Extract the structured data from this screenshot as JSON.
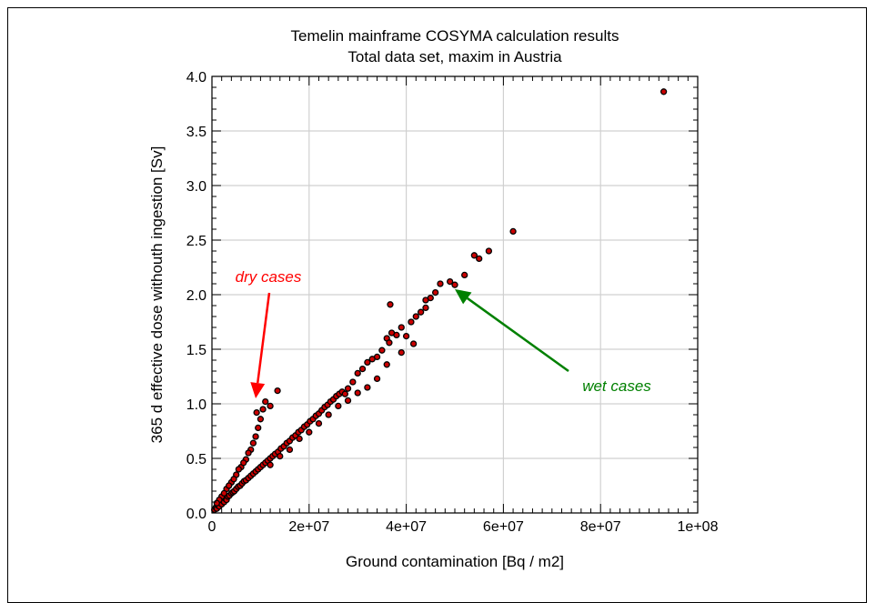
{
  "chart_data": {
    "type": "scatter",
    "title": "Temelin mainframe COSYMA calculation results",
    "subtitle": "Total data set, maxim in Austria",
    "xlabel": "Ground contamination [Bq / m2]",
    "ylabel": "365 d effective dose withouth ingestion [Sv]",
    "xlim": [
      0,
      100000000
    ],
    "ylim": [
      0,
      4.0
    ],
    "x_ticks": [
      0,
      20000000,
      40000000,
      60000000,
      80000000,
      100000000
    ],
    "x_tick_labels": [
      "0",
      "2e+07",
      "4e+07",
      "6e+07",
      "8e+07",
      "1e+08"
    ],
    "y_ticks": [
      0,
      0.5,
      1.0,
      1.5,
      2.0,
      2.5,
      3.0,
      3.5,
      4.0
    ],
    "y_tick_labels": [
      "0.0",
      "0.5",
      "1.0",
      "1.5",
      "2.0",
      "2.5",
      "3.0",
      "3.5",
      "4.0"
    ],
    "grid": true,
    "marker_color": "#cc0000",
    "marker_edge_color": "#000000",
    "series": [
      {
        "points": [
          [
            500000,
            0.03
          ],
          [
            800000,
            0.05
          ],
          [
            1000000,
            0.04
          ],
          [
            1200000,
            0.07
          ],
          [
            1500000,
            0.06
          ],
          [
            1800000,
            0.09
          ],
          [
            2000000,
            0.08
          ],
          [
            2300000,
            0.11
          ],
          [
            2500000,
            0.1
          ],
          [
            2800000,
            0.13
          ],
          [
            3000000,
            0.12
          ],
          [
            3300000,
            0.15
          ],
          [
            3600000,
            0.16
          ],
          [
            4000000,
            0.18
          ],
          [
            4300000,
            0.19
          ],
          [
            4600000,
            0.2
          ],
          [
            5000000,
            0.22
          ],
          [
            5400000,
            0.24
          ],
          [
            5800000,
            0.25
          ],
          [
            6200000,
            0.27
          ],
          [
            6600000,
            0.29
          ],
          [
            7000000,
            0.3
          ],
          [
            7500000,
            0.32
          ],
          [
            8000000,
            0.34
          ],
          [
            8500000,
            0.36
          ],
          [
            9000000,
            0.38
          ],
          [
            9500000,
            0.4
          ],
          [
            10000000,
            0.42
          ],
          [
            10500000,
            0.44
          ],
          [
            11000000,
            0.46
          ],
          [
            11500000,
            0.48
          ],
          [
            12000000,
            0.5
          ],
          [
            12500000,
            0.52
          ],
          [
            13000000,
            0.54
          ],
          [
            13600000,
            0.56
          ],
          [
            14200000,
            0.59
          ],
          [
            14800000,
            0.61
          ],
          [
            15400000,
            0.64
          ],
          [
            16000000,
            0.66
          ],
          [
            16600000,
            0.69
          ],
          [
            17200000,
            0.71
          ],
          [
            17800000,
            0.74
          ],
          [
            18400000,
            0.76
          ],
          [
            19000000,
            0.79
          ],
          [
            19600000,
            0.81
          ],
          [
            20200000,
            0.84
          ],
          [
            20800000,
            0.86
          ],
          [
            21400000,
            0.89
          ],
          [
            22000000,
            0.91
          ],
          [
            22600000,
            0.94
          ],
          [
            23200000,
            0.97
          ],
          [
            23800000,
            0.99
          ],
          [
            24400000,
            1.02
          ],
          [
            25000000,
            1.04
          ],
          [
            25600000,
            1.07
          ],
          [
            26200000,
            1.09
          ],
          [
            26800000,
            1.11
          ],
          [
            27400000,
            1.09
          ],
          [
            28000000,
            1.14
          ],
          [
            29000000,
            1.2
          ],
          [
            30000000,
            1.28
          ],
          [
            31000000,
            1.32
          ],
          [
            32000000,
            1.38
          ],
          [
            33000000,
            1.41
          ],
          [
            34000000,
            1.43
          ],
          [
            35000000,
            1.49
          ],
          [
            36000000,
            1.6
          ],
          [
            36500000,
            1.56
          ],
          [
            37000000,
            1.65
          ],
          [
            38000000,
            1.63
          ],
          [
            39000000,
            1.7
          ],
          [
            41000000,
            1.75
          ],
          [
            42000000,
            1.8
          ],
          [
            43000000,
            1.84
          ],
          [
            44000000,
            1.88
          ],
          [
            45000000,
            1.97
          ],
          [
            46000000,
            2.02
          ],
          [
            47000000,
            2.1
          ],
          [
            49000000,
            2.12
          ],
          [
            50000000,
            2.09
          ],
          [
            52000000,
            2.18
          ],
          [
            54000000,
            2.36
          ],
          [
            55000000,
            2.33
          ],
          [
            57000000,
            2.4
          ],
          [
            62000000,
            2.58
          ],
          [
            93000000,
            3.86
          ],
          [
            2000000,
            0.15
          ],
          [
            3000000,
            0.22
          ],
          [
            4000000,
            0.28
          ],
          [
            5000000,
            0.35
          ],
          [
            6000000,
            0.42
          ],
          [
            7000000,
            0.49
          ],
          [
            8000000,
            0.58
          ],
          [
            8500000,
            0.64
          ],
          [
            9000000,
            0.7
          ],
          [
            9500000,
            0.78
          ],
          [
            10000000,
            0.86
          ],
          [
            9200000,
            0.92
          ],
          [
            10500000,
            0.95
          ],
          [
            11000000,
            1.02
          ],
          [
            12000000,
            0.98
          ],
          [
            13500000,
            1.12
          ],
          [
            7500000,
            0.55
          ],
          [
            6500000,
            0.46
          ],
          [
            5500000,
            0.4
          ],
          [
            4500000,
            0.31
          ],
          [
            3500000,
            0.25
          ],
          [
            2500000,
            0.18
          ],
          [
            1500000,
            0.12
          ],
          [
            1000000,
            0.09
          ],
          [
            12000000,
            0.44
          ],
          [
            14000000,
            0.52
          ],
          [
            16000000,
            0.58
          ],
          [
            18000000,
            0.68
          ],
          [
            20000000,
            0.74
          ],
          [
            22000000,
            0.82
          ],
          [
            24000000,
            0.9
          ],
          [
            26000000,
            0.98
          ],
          [
            28000000,
            1.03
          ],
          [
            30000000,
            1.1
          ],
          [
            32000000,
            1.15
          ],
          [
            34000000,
            1.23
          ],
          [
            36000000,
            1.36
          ],
          [
            39000000,
            1.47
          ],
          [
            40000000,
            1.62
          ],
          [
            41500000,
            1.55
          ],
          [
            36700000,
            1.91
          ],
          [
            44000000,
            1.95
          ]
        ]
      }
    ],
    "annotations": [
      {
        "text": "dry cases",
        "color": "#ff0000",
        "arrow_to": [
          9000000,
          1.05
        ]
      },
      {
        "text": "wet cases",
        "color": "#008000",
        "arrow_to": [
          50000000,
          2.05
        ]
      }
    ]
  }
}
